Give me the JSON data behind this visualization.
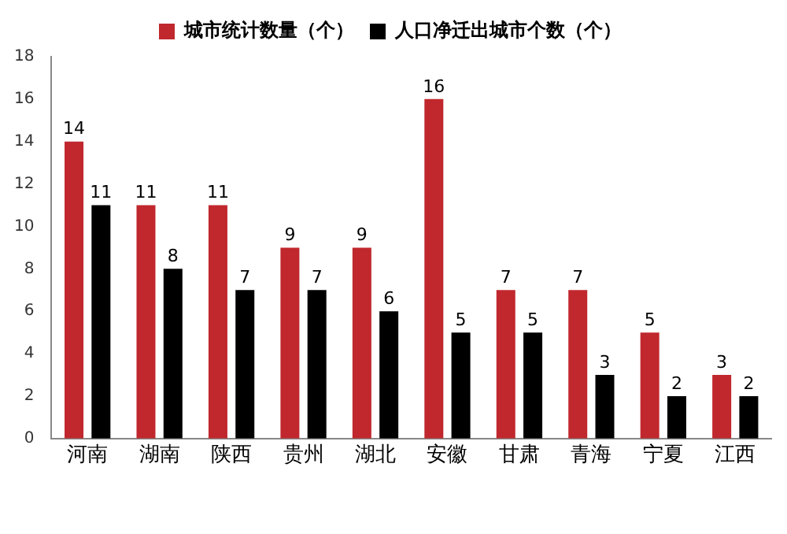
{
  "chart_data": {
    "type": "bar",
    "categories": [
      "河南",
      "湖南",
      "陕西",
      "贵州",
      "湖北",
      "安徽",
      "甘肃",
      "青海",
      "宁夏",
      "江西"
    ],
    "series": [
      {
        "name": "城市统计数量（个）",
        "color": "#c0282d",
        "values": [
          14,
          11,
          11,
          9,
          9,
          16,
          7,
          7,
          5,
          3
        ]
      },
      {
        "name": "人口净迁出城市个数（个）",
        "color": "#000000",
        "values": [
          11,
          8,
          7,
          7,
          6,
          5,
          5,
          3,
          2,
          2
        ]
      }
    ],
    "ylim": [
      0,
      18
    ],
    "yticks": [
      0,
      2,
      4,
      6,
      8,
      10,
      12,
      14,
      16,
      18
    ],
    "grid": false,
    "legend": "top",
    "data_labels": true
  }
}
